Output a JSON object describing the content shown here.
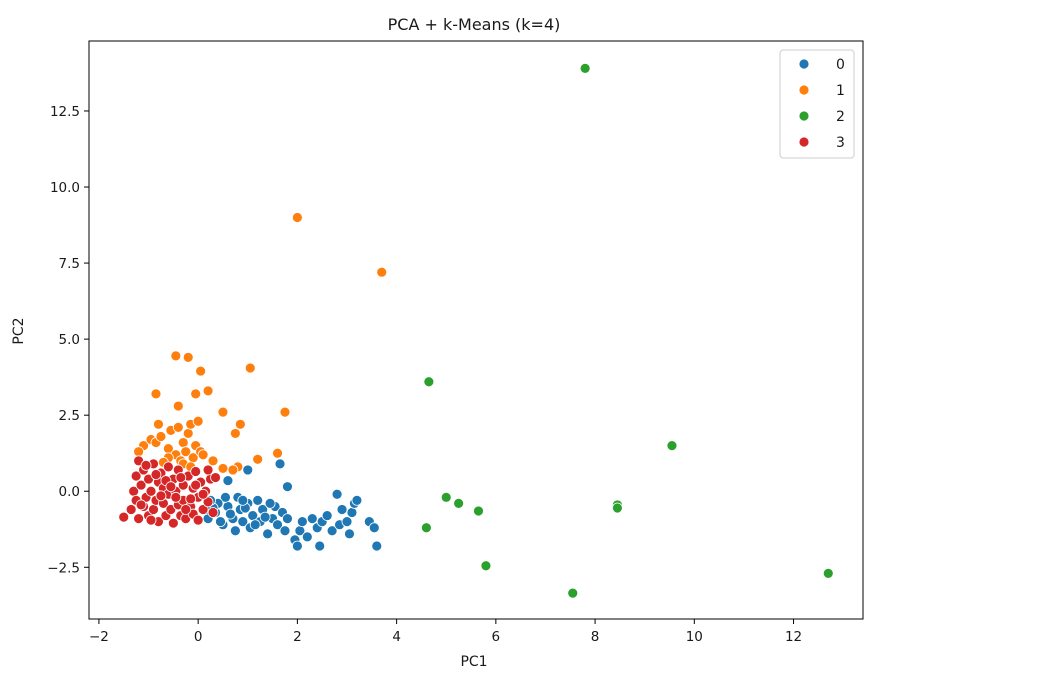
{
  "chart_data": {
    "type": "scatter",
    "title": "PCA + k-Means (k=4)",
    "xlabel": "PC1",
    "ylabel": "PC2",
    "xlim": [
      -2.2,
      13.4
    ],
    "ylim": [
      -4.2,
      14.8
    ],
    "xticks": [
      -2,
      0,
      2,
      4,
      6,
      8,
      10,
      12
    ],
    "yticks": [
      -2.5,
      0.0,
      2.5,
      5.0,
      7.5,
      10.0,
      12.5
    ],
    "ytick_labels": [
      "−2.5",
      "0.0",
      "2.5",
      "5.0",
      "7.5",
      "10.0",
      "12.5"
    ],
    "xtick_labels": [
      "−2",
      "0",
      "2",
      "4",
      "6",
      "8",
      "10",
      "12"
    ],
    "grid": false,
    "legend_position": "top-right",
    "series": [
      {
        "name": "0",
        "color": "#1f77b4",
        "points": [
          [
            0.2,
            -0.9
          ],
          [
            0.35,
            -0.7
          ],
          [
            0.5,
            -1.1
          ],
          [
            0.6,
            -0.5
          ],
          [
            0.7,
            -0.9
          ],
          [
            0.75,
            -1.3
          ],
          [
            0.85,
            -0.6
          ],
          [
            0.9,
            -1.0
          ],
          [
            1.0,
            -0.4
          ],
          [
            1.05,
            -1.2
          ],
          [
            1.1,
            -0.8
          ],
          [
            1.2,
            -0.3
          ],
          [
            1.25,
            -1.0
          ],
          [
            1.3,
            -0.6
          ],
          [
            1.4,
            -1.4
          ],
          [
            1.5,
            -0.9
          ],
          [
            1.55,
            -0.5
          ],
          [
            1.6,
            -1.1
          ],
          [
            1.7,
            -0.7
          ],
          [
            1.75,
            -1.3
          ],
          [
            1.8,
            -0.9
          ],
          [
            1.95,
            -1.6
          ],
          [
            2.0,
            -1.8
          ],
          [
            2.05,
            -1.3
          ],
          [
            2.1,
            -1.0
          ],
          [
            2.2,
            -1.5
          ],
          [
            2.3,
            -0.9
          ],
          [
            2.4,
            -1.2
          ],
          [
            2.45,
            -1.8
          ],
          [
            2.5,
            -1.0
          ],
          [
            2.6,
            -0.8
          ],
          [
            2.7,
            -1.3
          ],
          [
            2.8,
            -0.1
          ],
          [
            2.85,
            -1.1
          ],
          [
            2.9,
            -0.6
          ],
          [
            3.0,
            -1.0
          ],
          [
            3.05,
            -1.4
          ],
          [
            3.1,
            -0.7
          ],
          [
            3.15,
            -0.4
          ],
          [
            3.2,
            -0.3
          ],
          [
            3.45,
            -1.0
          ],
          [
            3.55,
            -1.2
          ],
          [
            3.6,
            -1.8
          ],
          [
            0.55,
            -0.2
          ],
          [
            0.8,
            -0.2
          ],
          [
            1.0,
            0.7
          ],
          [
            1.65,
            0.9
          ],
          [
            1.8,
            0.15
          ],
          [
            0.4,
            -0.4
          ],
          [
            0.65,
            -0.75
          ],
          [
            0.95,
            -0.55
          ],
          [
            1.15,
            -1.1
          ],
          [
            1.35,
            -0.85
          ],
          [
            0.3,
            -0.55
          ],
          [
            0.45,
            -1.0
          ],
          [
            0.6,
            0.35
          ],
          [
            0.9,
            -0.3
          ],
          [
            1.45,
            -0.4
          ],
          [
            0.25,
            -0.3
          ],
          [
            0.15,
            -0.6
          ]
        ]
      },
      {
        "name": "1",
        "color": "#ff7f0e",
        "points": [
          [
            -1.1,
            1.5
          ],
          [
            -0.95,
            1.7
          ],
          [
            -0.85,
            1.6
          ],
          [
            -0.8,
            2.2
          ],
          [
            -0.75,
            1.8
          ],
          [
            -0.6,
            1.4
          ],
          [
            -0.55,
            2.0
          ],
          [
            -0.45,
            1.2
          ],
          [
            -0.4,
            2.1
          ],
          [
            -0.35,
            1.0
          ],
          [
            -0.3,
            1.6
          ],
          [
            -0.25,
            1.3
          ],
          [
            -0.2,
            1.9
          ],
          [
            -0.15,
            2.2
          ],
          [
            -0.1,
            1.1
          ],
          [
            -0.05,
            1.5
          ],
          [
            0.0,
            2.3
          ],
          [
            0.05,
            1.3
          ],
          [
            0.1,
            1.2
          ],
          [
            -0.85,
            3.2
          ],
          [
            -0.45,
            4.45
          ],
          [
            -0.2,
            4.4
          ],
          [
            0.05,
            3.95
          ],
          [
            -0.05,
            3.2
          ],
          [
            0.2,
            3.3
          ],
          [
            -0.4,
            2.8
          ],
          [
            0.5,
            2.6
          ],
          [
            0.75,
            1.9
          ],
          [
            0.85,
            2.2
          ],
          [
            1.05,
            4.05
          ],
          [
            1.75,
            2.6
          ],
          [
            1.6,
            1.25
          ],
          [
            1.2,
            1.05
          ],
          [
            0.8,
            0.8
          ],
          [
            0.7,
            0.7
          ],
          [
            0.5,
            0.75
          ],
          [
            0.3,
            1.0
          ],
          [
            -0.3,
            0.9
          ],
          [
            -0.6,
            1.1
          ],
          [
            -1.2,
            1.3
          ],
          [
            2.0,
            9.0
          ],
          [
            3.7,
            7.2
          ],
          [
            -0.7,
            0.95
          ],
          [
            -0.15,
            0.8
          ]
        ]
      },
      {
        "name": "2",
        "color": "#2ca02c",
        "points": [
          [
            7.8,
            13.9
          ],
          [
            4.65,
            3.6
          ],
          [
            9.55,
            1.5
          ],
          [
            5.0,
            -0.2
          ],
          [
            5.25,
            -0.4
          ],
          [
            5.65,
            -0.65
          ],
          [
            4.6,
            -1.2
          ],
          [
            8.45,
            -0.45
          ],
          [
            8.45,
            -0.55
          ],
          [
            5.8,
            -2.45
          ],
          [
            7.55,
            -3.35
          ],
          [
            12.7,
            -2.7
          ]
        ]
      },
      {
        "name": "3",
        "color": "#d62728",
        "points": [
          [
            -1.5,
            -0.85
          ],
          [
            -1.35,
            -0.6
          ],
          [
            -1.3,
            0.0
          ],
          [
            -1.25,
            -0.3
          ],
          [
            -1.25,
            0.5
          ],
          [
            -1.2,
            -0.9
          ],
          [
            -1.2,
            1.0
          ],
          [
            -1.15,
            0.2
          ],
          [
            -1.1,
            -0.5
          ],
          [
            -1.1,
            0.7
          ],
          [
            -1.05,
            -0.2
          ],
          [
            -1.0,
            -0.8
          ],
          [
            -1.0,
            0.4
          ],
          [
            -0.95,
            0.0
          ],
          [
            -0.9,
            -0.6
          ],
          [
            -0.9,
            0.9
          ],
          [
            -0.85,
            -0.3
          ],
          [
            -0.8,
            0.3
          ],
          [
            -0.8,
            -1.0
          ],
          [
            -0.75,
            0.6
          ],
          [
            -0.7,
            -0.4
          ],
          [
            -0.7,
            0.1
          ],
          [
            -0.65,
            -0.8
          ],
          [
            -0.6,
            0.8
          ],
          [
            -0.6,
            -0.1
          ],
          [
            -0.55,
            -0.6
          ],
          [
            -0.5,
            0.4
          ],
          [
            -0.5,
            -1.05
          ],
          [
            -0.45,
            0.0
          ],
          [
            -0.4,
            -0.45
          ],
          [
            -0.4,
            0.7
          ],
          [
            -0.35,
            -0.8
          ],
          [
            -0.3,
            0.2
          ],
          [
            -0.3,
            -0.3
          ],
          [
            -0.25,
            -0.9
          ],
          [
            -0.2,
            0.5
          ],
          [
            -0.15,
            -0.5
          ],
          [
            -0.1,
            0.1
          ],
          [
            -0.1,
            -0.75
          ],
          [
            -0.05,
            0.65
          ],
          [
            0.0,
            -0.2
          ],
          [
            0.0,
            -0.95
          ],
          [
            0.05,
            0.3
          ],
          [
            0.1,
            -0.6
          ],
          [
            0.15,
            0.0
          ],
          [
            0.2,
            -0.35
          ],
          [
            0.25,
            0.4
          ],
          [
            0.3,
            -0.7
          ],
          [
            -1.15,
            -0.45
          ],
          [
            -0.95,
            -0.95
          ],
          [
            -0.85,
            0.55
          ],
          [
            -0.65,
            0.35
          ],
          [
            -0.45,
            -0.2
          ],
          [
            -0.25,
            -0.6
          ],
          [
            -0.05,
            0.2
          ],
          [
            0.1,
            -0.1
          ],
          [
            -1.05,
            0.85
          ],
          [
            -0.75,
            -0.15
          ],
          [
            -0.55,
            0.15
          ],
          [
            -0.35,
            0.45
          ],
          [
            -0.15,
            -0.25
          ],
          [
            0.35,
            0.45
          ],
          [
            0.2,
            0.7
          ]
        ]
      }
    ]
  }
}
